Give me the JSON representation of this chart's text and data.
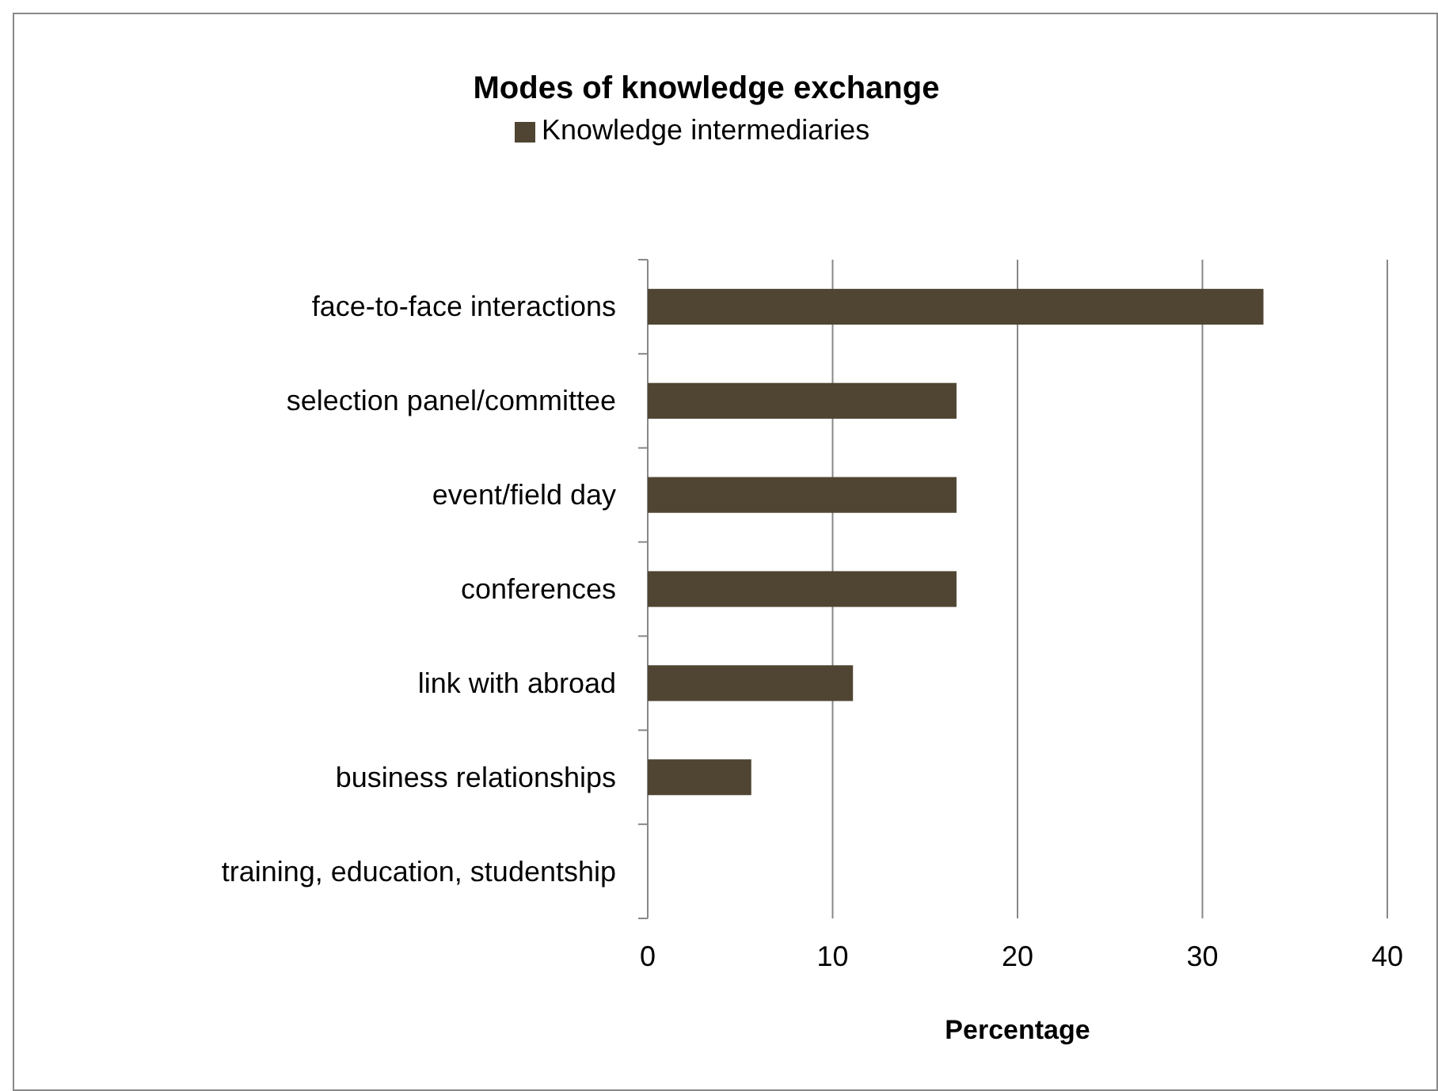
{
  "chart_data": {
    "type": "bar",
    "orientation": "horizontal",
    "title": "Modes of knowledge exchange",
    "xlabel": "Percentage",
    "categories": [
      "face-to-face interactions",
      "selection panel/committee",
      "event/field day",
      "conferences",
      "link with abroad",
      "business relationships",
      "training, education, studentship"
    ],
    "series": [
      {
        "name": "Knowledge intermediaries",
        "color": "#4f4532",
        "values": [
          33.3,
          16.7,
          16.7,
          16.7,
          11.1,
          5.6,
          0
        ]
      }
    ],
    "xlim": [
      0,
      40
    ],
    "xticks": [
      0,
      10,
      20,
      30,
      40
    ],
    "grid": "x",
    "legend": "top"
  }
}
